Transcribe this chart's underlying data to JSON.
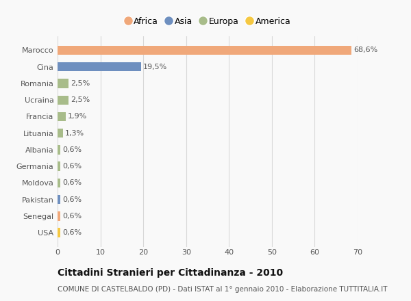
{
  "categories": [
    "Marocco",
    "Cina",
    "Romania",
    "Ucraina",
    "Francia",
    "Lituania",
    "Albania",
    "Germania",
    "Moldova",
    "Pakistan",
    "Senegal",
    "USA"
  ],
  "values": [
    68.6,
    19.5,
    2.5,
    2.5,
    1.9,
    1.3,
    0.6,
    0.6,
    0.6,
    0.6,
    0.6,
    0.6
  ],
  "labels": [
    "68,6%",
    "19,5%",
    "2,5%",
    "2,5%",
    "1,9%",
    "1,3%",
    "0,6%",
    "0,6%",
    "0,6%",
    "0,6%",
    "0,6%",
    "0,6%"
  ],
  "colors": [
    "#F0A87A",
    "#6E8FBF",
    "#A8BC8A",
    "#A8BC8A",
    "#A8BC8A",
    "#A8BC8A",
    "#A8BC8A",
    "#A8BC8A",
    "#A8BC8A",
    "#6E8FBF",
    "#F0A87A",
    "#F5C842"
  ],
  "legend_labels": [
    "Africa",
    "Asia",
    "Europa",
    "America"
  ],
  "legend_colors": [
    "#F0A87A",
    "#6E8FBF",
    "#A8BC8A",
    "#F5C842"
  ],
  "title": "Cittadini Stranieri per Cittadinanza - 2010",
  "subtitle": "COMUNE DI CASTELBALDO (PD) - Dati ISTAT al 1° gennaio 2010 - Elaborazione TUTTITALIA.IT",
  "xlim": [
    0,
    70
  ],
  "xticks": [
    0,
    10,
    20,
    30,
    40,
    50,
    60,
    70
  ],
  "background_color": "#f9f9f9",
  "grid_color": "#d8d8d8",
  "bar_height": 0.55,
  "title_fontsize": 10,
  "subtitle_fontsize": 7.5,
  "label_fontsize": 8,
  "tick_fontsize": 8,
  "legend_fontsize": 9
}
